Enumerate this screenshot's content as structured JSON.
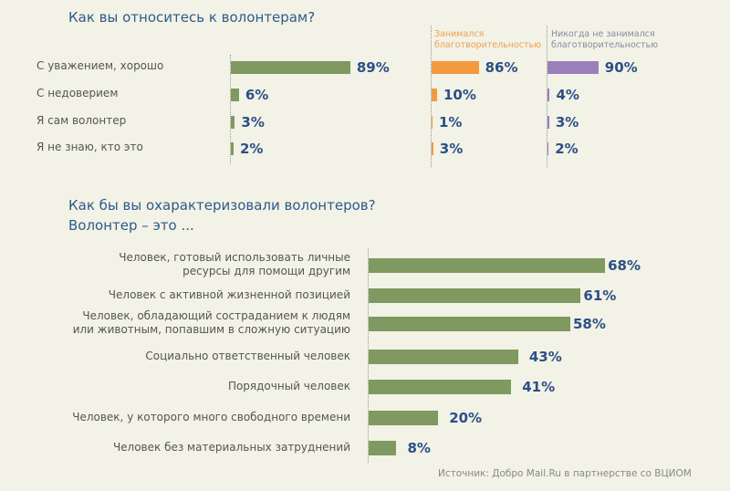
{
  "chart_data": [
    {
      "type": "bar",
      "title": "Как вы относитесь к волонтерам?",
      "categories": [
        "С уважением, хорошо",
        "С недоверием",
        "Я сам волонтер",
        "Я не знаю, кто это"
      ],
      "series": [
        {
          "name": "",
          "values": [
            89,
            6,
            3,
            2
          ],
          "color": "#7f9960"
        },
        {
          "name": "Занимался благотворительностью",
          "values": [
            86,
            10,
            1,
            3
          ],
          "color": "#f39a3e"
        },
        {
          "name": "Никогда не занимался благотворительностью",
          "values": [
            90,
            4,
            3,
            2
          ],
          "color": "#9b7fbb"
        }
      ],
      "unit": "%"
    },
    {
      "type": "bar",
      "title": "Как бы вы охарактеризовали волонтеров?",
      "subtitle": "Волонтер – это ...",
      "categories": [
        "Человек, готовый использовать личные ресурсы для помощи другим",
        "Человек с активной жизненной позицией",
        "Человек, обладающий состраданием к людям или животным, попавшим в сложную ситуацию",
        "Социально ответственный человек",
        "Порядочный человек",
        "Человек,  у которого  много свободного времени",
        "Человек без материальных затруднений"
      ],
      "values": [
        68,
        61,
        58,
        43,
        41,
        20,
        8
      ],
      "color": "#7f9960",
      "unit": "%"
    }
  ],
  "labels2": [
    "Человек, готовый использовать личные\nресурсы для помощи другим",
    "Человек с активной жизненной позицией",
    "Человек, обладающий состраданием к людям\nили животным, попавшим в сложную ситуацию",
    "Социально ответственный человек",
    "Порядочный человек",
    "Человек,  у которого  много свободного времени",
    "Человек без материальных затруднений"
  ],
  "source": "Источник: Добро Mail.Ru в партнерстве со ВЦИОМ"
}
